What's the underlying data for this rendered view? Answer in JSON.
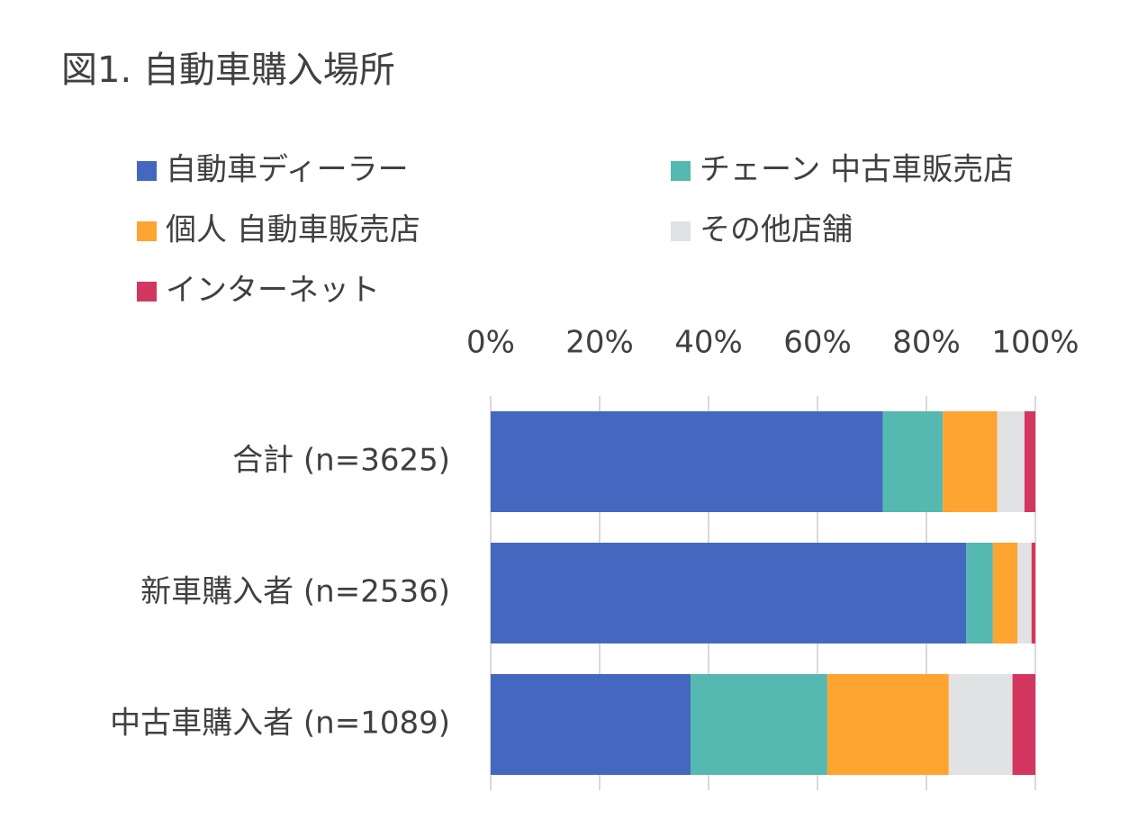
{
  "chart_data": {
    "type": "stacked_bar_horizontal",
    "title": "図1. 自動車購入場所",
    "categories": [
      "合計 (n=3625)",
      "新車購入者 (n=2536)",
      "中古車購入者 (n=1089)"
    ],
    "series": [
      {
        "name": "自動車ディーラー",
        "color": "#4468c0",
        "values": [
          72,
          87.3,
          36.7
        ]
      },
      {
        "name": "チェーン 中古車販売店",
        "color": "#55b8b1",
        "values": [
          11,
          4.9,
          25.1
        ]
      },
      {
        "name": "個人 自動車販売店",
        "color": "#fea431",
        "values": [
          10,
          4.5,
          22.3
        ]
      },
      {
        "name": "その他店舗",
        "color": "#e1e2e4",
        "values": [
          5,
          2.6,
          11.7
        ]
      },
      {
        "name": "インターネット",
        "color": "#d3375f",
        "values": [
          2,
          0.7,
          4.2
        ]
      }
    ],
    "xlim": [
      0,
      100
    ],
    "xticks": [
      {
        "value": 0,
        "label": "0%"
      },
      {
        "value": 20,
        "label": "20%"
      },
      {
        "value": 40,
        "label": "40%"
      },
      {
        "value": 60,
        "label": "60%"
      },
      {
        "value": 80,
        "label": "80%"
      },
      {
        "value": 100,
        "label": "100%"
      }
    ],
    "grid": true
  }
}
